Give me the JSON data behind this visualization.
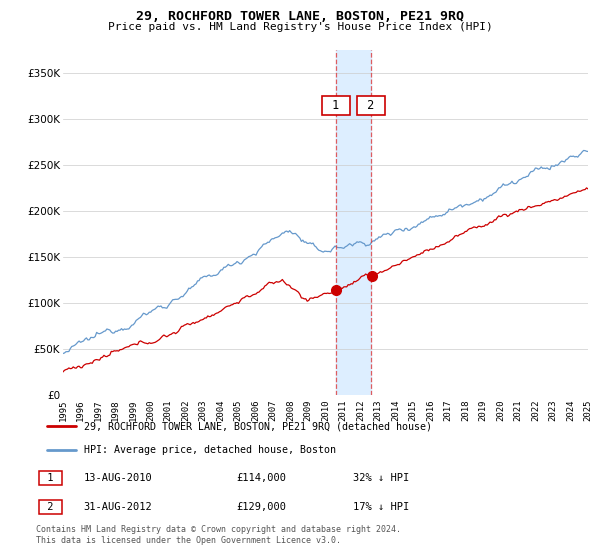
{
  "title": "29, ROCHFORD TOWER LANE, BOSTON, PE21 9RQ",
  "subtitle": "Price paid vs. HM Land Registry's House Price Index (HPI)",
  "red_label": "29, ROCHFORD TOWER LANE, BOSTON, PE21 9RQ (detached house)",
  "blue_label": "HPI: Average price, detached house, Boston",
  "event1_date": "13-AUG-2010",
  "event1_price": "£114,000",
  "event1_hpi": "32% ↓ HPI",
  "event2_date": "31-AUG-2012",
  "event2_price": "£129,000",
  "event2_hpi": "17% ↓ HPI",
  "footer": "Contains HM Land Registry data © Crown copyright and database right 2024.\nThis data is licensed under the Open Government Licence v3.0.",
  "ylim_max": 375000,
  "red_color": "#cc0000",
  "blue_color": "#6699cc",
  "shaded_color": "#ddeeff",
  "event1_year": 2010.6,
  "event2_year": 2012.6,
  "year_start": 1995,
  "year_end": 2025,
  "event1_red_val": 114000,
  "event2_red_val": 129000
}
